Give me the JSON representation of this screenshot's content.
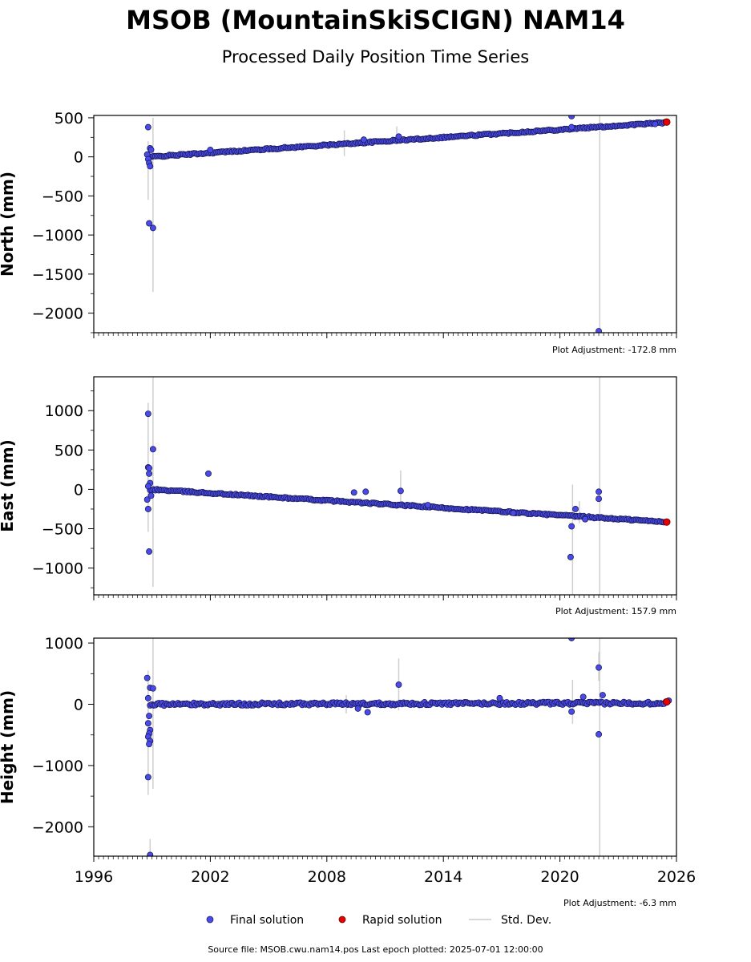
{
  "chart_data": {
    "type": "scatter",
    "title": "MSOB (MountainSkiSCIGN) NAM14",
    "subtitle": "Processed Daily Position Time Series",
    "x_range": [
      1996,
      2026
    ],
    "x_ticks": [
      1996,
      2002,
      2008,
      2014,
      2020,
      2026
    ],
    "x_tick_labels": [
      "1996",
      "2002",
      "2008",
      "2014",
      "2020",
      "2026"
    ],
    "legend": {
      "placement": "bottom-center",
      "entries": [
        {
          "label": "Final solution",
          "color": "#4a4ae8"
        },
        {
          "label": "Rapid solution",
          "color": "#e80000"
        },
        {
          "label": "Std. Dev.",
          "color": "#cccccc"
        }
      ]
    },
    "footer": "Source file: MSOB.cwu.nam14.pos  Last epoch plotted: 2025-07-01 12:00:00",
    "panels": [
      {
        "ylabel": "North (mm)",
        "ylim": [
          -2250,
          530
        ],
        "y_ticks": [
          500,
          0,
          -500,
          -1000,
          -1500,
          -2000
        ],
        "y_tick_labels": [
          "500",
          "0",
          "−500",
          "−1000",
          "−1500",
          "−2000"
        ],
        "adjustment": "Plot Adjustment: -172.8 mm",
        "trend": [
          [
            1998.9,
            0
          ],
          [
            2025.5,
            440
          ]
        ],
        "outliers": [
          [
            1998.8,
            380
          ],
          [
            1998.9,
            110
          ],
          [
            1998.95,
            90
          ],
          [
            1998.75,
            30
          ],
          [
            1998.8,
            -30
          ],
          [
            1998.85,
            -80
          ],
          [
            1998.9,
            -120
          ],
          [
            1998.85,
            -850
          ],
          [
            1999.05,
            -910
          ],
          [
            2020.6,
            520
          ],
          [
            2020.6,
            380
          ],
          [
            2011.7,
            260
          ],
          [
            2002.0,
            90
          ],
          [
            2009.9,
            220
          ],
          [
            2024.9,
            420
          ],
          [
            2022.0,
            -2230
          ]
        ],
        "std_dev_bars": [
          [
            1998.8,
            200,
            -550
          ],
          [
            1999.05,
            500,
            -1730
          ],
          [
            2022.05,
            530,
            -2250
          ],
          [
            2008.9,
            340,
            10
          ],
          [
            2011.6,
            390,
            180
          ]
        ],
        "rapid_last": [
          2025.5,
          445
        ]
      },
      {
        "ylabel": "East (mm)",
        "ylim": [
          -1340,
          1430
        ],
        "y_ticks": [
          1000,
          500,
          0,
          -500,
          -1000
        ],
        "y_tick_labels": [
          "1000",
          "500",
          "0",
          "−500",
          "−1000"
        ],
        "adjustment": "Plot Adjustment: 157.9 mm",
        "trend": [
          [
            1998.9,
            0
          ],
          [
            2025.5,
            -415
          ]
        ],
        "outliers": [
          [
            1998.8,
            960
          ],
          [
            1999.05,
            510
          ],
          [
            1998.8,
            280
          ],
          [
            1998.85,
            270
          ],
          [
            1998.85,
            200
          ],
          [
            1998.9,
            80
          ],
          [
            1998.8,
            40
          ],
          [
            1998.75,
            -130
          ],
          [
            1998.95,
            -80
          ],
          [
            1998.8,
            -250
          ],
          [
            1998.85,
            -790
          ],
          [
            2001.9,
            200
          ],
          [
            2009.4,
            -40
          ],
          [
            2010.0,
            -30
          ],
          [
            2011.8,
            -20
          ],
          [
            2022.0,
            -30
          ],
          [
            2022.0,
            -120
          ],
          [
            2020.6,
            -470
          ],
          [
            2020.55,
            -860
          ],
          [
            2020.8,
            -250
          ],
          [
            2021.3,
            -380
          ],
          [
            2013.2,
            -200
          ],
          [
            2017.6,
            -300
          ]
        ],
        "std_dev_bars": [
          [
            1998.8,
            1100,
            -540
          ],
          [
            1999.05,
            1430,
            -1240
          ],
          [
            2020.65,
            60,
            -1340
          ],
          [
            2022.05,
            1430,
            -1340
          ],
          [
            2011.8,
            240,
            -230
          ],
          [
            2021.0,
            -150,
            -430
          ]
        ],
        "rapid_last": [
          2025.5,
          -415
        ]
      },
      {
        "ylabel": "Height (mm)",
        "ylim": [
          -2480,
          1080
        ],
        "y_ticks": [
          1000,
          0,
          -1000,
          -2000
        ],
        "y_tick_labels": [
          "1000",
          "0",
          "−1000",
          "−2000"
        ],
        "adjustment": "Plot Adjustment: -6.3 mm",
        "trend": [
          [
            1998.9,
            0
          ],
          [
            2025.5,
            20
          ]
        ],
        "outliers": [
          [
            1998.75,
            430
          ],
          [
            1998.9,
            270
          ],
          [
            1999.05,
            260
          ],
          [
            1998.8,
            100
          ],
          [
            1998.85,
            -190
          ],
          [
            1998.8,
            -310
          ],
          [
            1998.9,
            -420
          ],
          [
            1998.85,
            -480
          ],
          [
            1998.8,
            -530
          ],
          [
            1998.9,
            -600
          ],
          [
            1998.85,
            -650
          ],
          [
            1998.8,
            -1190
          ],
          [
            1998.9,
            -2460
          ],
          [
            2011.7,
            320
          ],
          [
            2010.1,
            -130
          ],
          [
            2009.6,
            -70
          ],
          [
            2020.6,
            1080
          ],
          [
            2020.6,
            -120
          ],
          [
            2022.0,
            600
          ],
          [
            2022.0,
            -490
          ],
          [
            2022.2,
            150
          ],
          [
            2016.9,
            100
          ],
          [
            2021.2,
            120
          ],
          [
            2025.6,
            60
          ]
        ],
        "std_dev_bars": [
          [
            1998.8,
            550,
            -1480
          ],
          [
            1999.05,
            1080,
            -1380
          ],
          [
            1998.9,
            -2200,
            -2480
          ],
          [
            2011.7,
            750,
            -100
          ],
          [
            2020.65,
            400,
            -320
          ],
          [
            2022.05,
            1080,
            -2480
          ],
          [
            2022.0,
            850,
            380
          ],
          [
            2009.0,
            150,
            -150
          ]
        ],
        "rapid_last": [
          2025.5,
          40
        ]
      }
    ]
  }
}
